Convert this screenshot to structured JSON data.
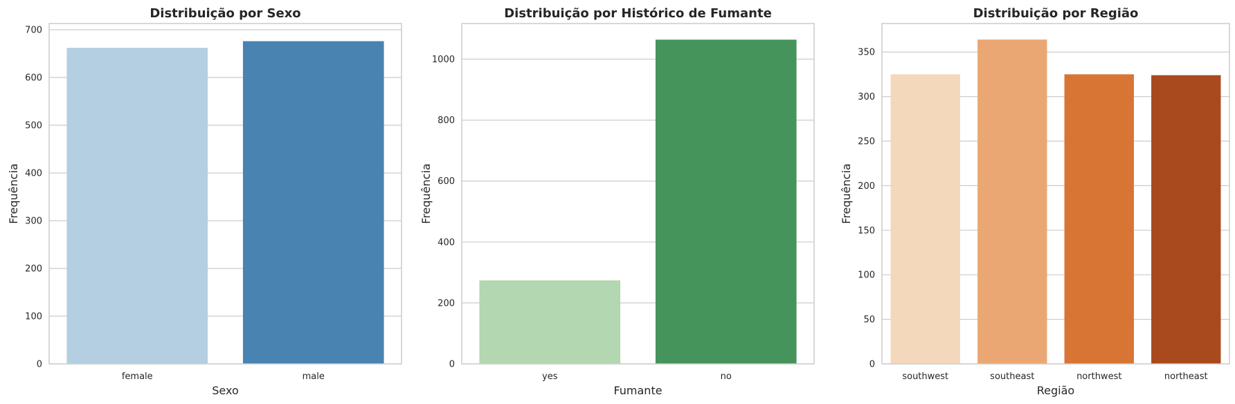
{
  "chart_data": [
    {
      "type": "bar",
      "title": "Distribuição por Sexo",
      "xlabel": "Sexo",
      "ylabel": "Frequência",
      "categories": [
        "female",
        "male"
      ],
      "values": [
        662,
        676
      ],
      "colors": [
        "#b3cfe1",
        "#4883b2"
      ],
      "ylim": [
        0,
        713
      ],
      "yticks": [
        0,
        100,
        200,
        300,
        400,
        500,
        600,
        700
      ],
      "grid": true,
      "legend": "none"
    },
    {
      "type": "bar",
      "title": "Distribuição por Histórico de Fumante",
      "xlabel": "Fumante",
      "ylabel": "Frequência",
      "categories": [
        "yes",
        "no"
      ],
      "values": [
        274,
        1064
      ],
      "colors": [
        "#b3d7b0",
        "#44945c"
      ],
      "ylim": [
        0,
        1117
      ],
      "yticks": [
        0,
        200,
        400,
        600,
        800,
        1000
      ],
      "grid": true,
      "legend": "none"
    },
    {
      "type": "bar",
      "title": "Distribuição por Região",
      "xlabel": "Região",
      "ylabel": "Frequência",
      "categories": [
        "southwest",
        "southeast",
        "northwest",
        "northeast"
      ],
      "values": [
        325,
        364,
        325,
        324
      ],
      "colors": [
        "#f4d8bb",
        "#eba773",
        "#d87535",
        "#a94a1e"
      ],
      "ylim": [
        0,
        382
      ],
      "yticks": [
        0,
        50,
        100,
        150,
        200,
        250,
        300,
        350
      ],
      "grid": true,
      "legend": "none"
    }
  ]
}
